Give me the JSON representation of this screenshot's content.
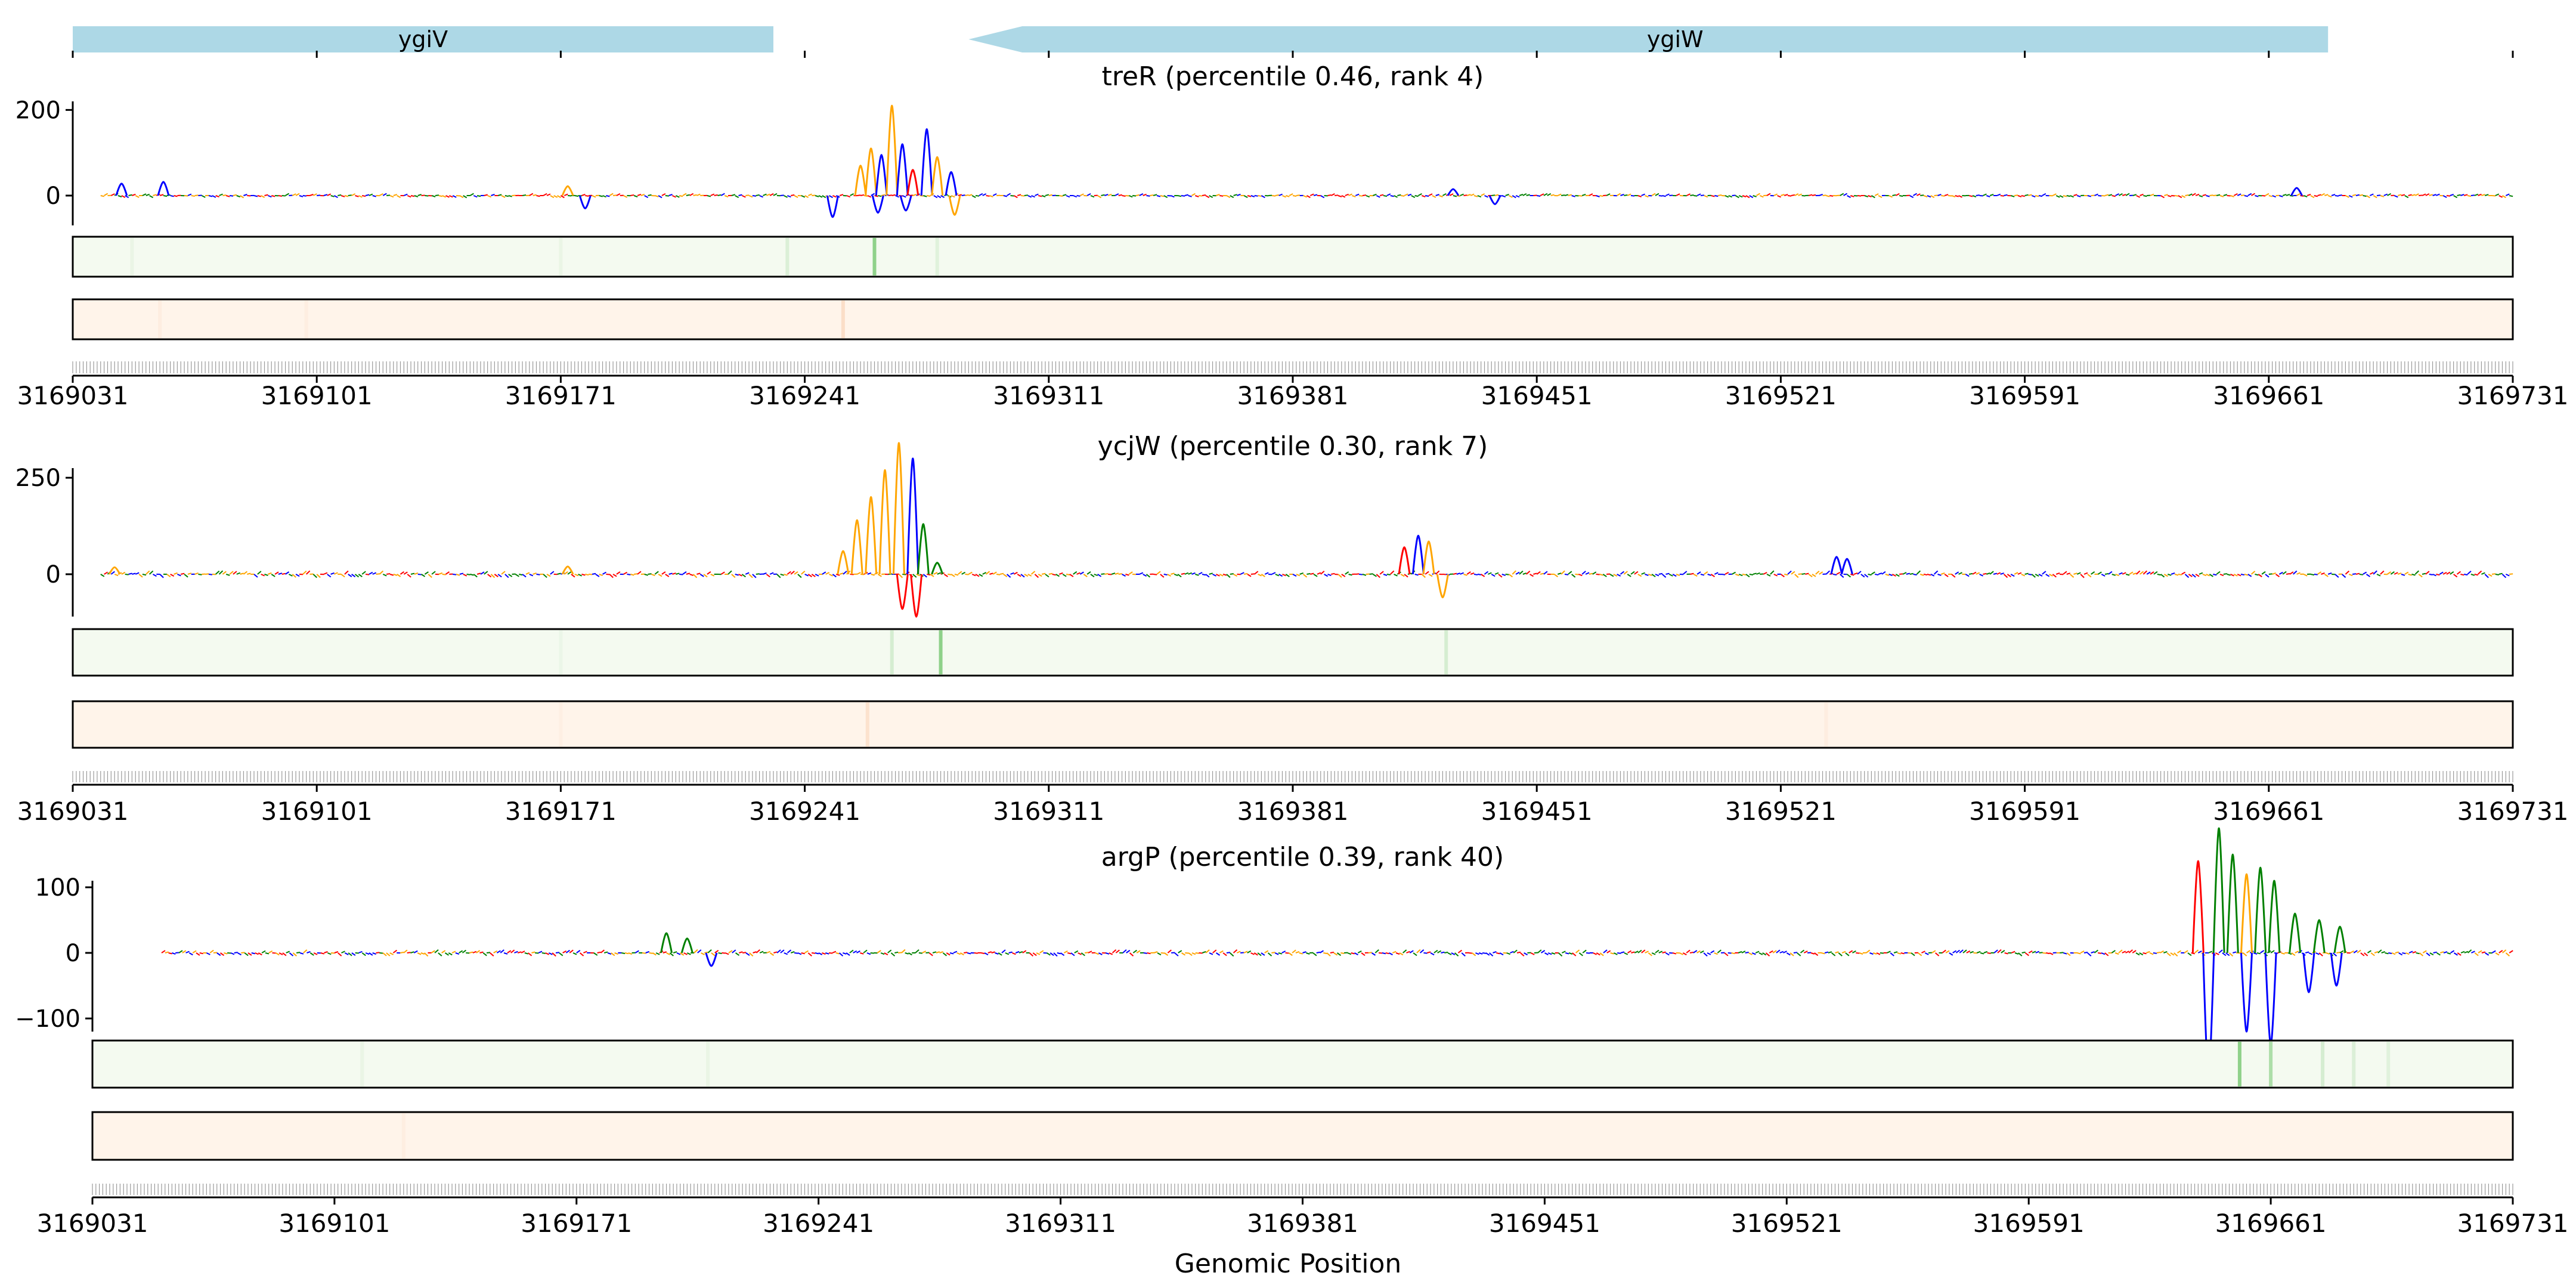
{
  "figure": {
    "xlabel": "Genomic Position",
    "colors": {
      "gene": "#add8e6",
      "base_A": "#008000",
      "base_C": "#0000ff",
      "base_G": "#ffa500",
      "base_T": "#ff0000",
      "heat_green_bg": "#f4faf0",
      "heat_green_peak": "#8fd18a",
      "heat_orange_bg": "#fff4ea",
      "heat_orange_peak": "#f7c8a5"
    }
  },
  "chart_data": {
    "type": "genome-track-figure",
    "x_range": [
      3169031,
      3169731
    ],
    "x_ticks": [
      3169031,
      3169101,
      3169171,
      3169241,
      3169311,
      3169381,
      3169451,
      3169521,
      3169591,
      3169661,
      3169731
    ],
    "x_tick_labels": [
      "3169031",
      "3169101",
      "3169171",
      "3169241",
      "3169311",
      "3169381",
      "3169451",
      "3169521",
      "3169591",
      "3169661",
      "3169731"
    ],
    "genes": [
      {
        "name": "ygiV",
        "start": 3169031,
        "end": 3169232,
        "strand": "+"
      },
      {
        "name": "ygiW",
        "start": 3169288,
        "end": 3169678,
        "strand": "-"
      }
    ],
    "panels": [
      {
        "title": "treR (percentile 0.46, rank 4)",
        "y_ticks": [
          0,
          200
        ],
        "y_tick_labels": [
          "0",
          "200"
        ],
        "ylim": [
          -80,
          230
        ],
        "xlim": [
          3169031,
          3169731
        ],
        "attribution_peaks": [
          {
            "x": 3169045,
            "value": 28,
            "base": "C"
          },
          {
            "x": 3169057,
            "value": 32,
            "base": "C"
          },
          {
            "x": 3169173,
            "value": 22,
            "base": "G"
          },
          {
            "x": 3169178,
            "value": -30,
            "base": "C"
          },
          {
            "x": 3169257,
            "value": 70,
            "base": "G"
          },
          {
            "x": 3169260,
            "value": 110,
            "base": "G"
          },
          {
            "x": 3169263,
            "value": 95,
            "base": "C"
          },
          {
            "x": 3169266,
            "value": 210,
            "base": "G"
          },
          {
            "x": 3169269,
            "value": 120,
            "base": "C"
          },
          {
            "x": 3169272,
            "value": 60,
            "base": "T"
          },
          {
            "x": 3169276,
            "value": 155,
            "base": "C"
          },
          {
            "x": 3169279,
            "value": 90,
            "base": "G"
          },
          {
            "x": 3169283,
            "value": 55,
            "base": "C"
          },
          {
            "x": 3169249,
            "value": -50,
            "base": "C"
          },
          {
            "x": 3169262,
            "value": -40,
            "base": "C"
          },
          {
            "x": 3169270,
            "value": -35,
            "base": "C"
          },
          {
            "x": 3169284,
            "value": -45,
            "base": "G"
          },
          {
            "x": 3169427,
            "value": 15,
            "base": "C"
          },
          {
            "x": 3169439,
            "value": -20,
            "base": "C"
          },
          {
            "x": 3169669,
            "value": 18,
            "base": "C"
          }
        ],
        "heat_green": [
          {
            "x": 3169261,
            "intensity": 1.0
          },
          {
            "x": 3169236,
            "intensity": 0.25
          },
          {
            "x": 3169279,
            "intensity": 0.2
          },
          {
            "x": 3169048,
            "intensity": 0.1
          },
          {
            "x": 3169171,
            "intensity": 0.1
          }
        ],
        "heat_orange": [
          {
            "x": 3169252,
            "intensity": 0.5
          },
          {
            "x": 3169056,
            "intensity": 0.15
          },
          {
            "x": 3169098,
            "intensity": 0.12
          }
        ]
      },
      {
        "title": "ycjW (percentile 0.30, rank 7)",
        "y_ticks": [
          0,
          250
        ],
        "y_tick_labels": [
          "0",
          "250"
        ],
        "ylim": [
          -120,
          360
        ],
        "xlim": [
          3169031,
          3169731
        ],
        "attribution_peaks": [
          {
            "x": 3169043,
            "value": 18,
            "base": "G"
          },
          {
            "x": 3169173,
            "value": 20,
            "base": "G"
          },
          {
            "x": 3169252,
            "value": 60,
            "base": "G"
          },
          {
            "x": 3169256,
            "value": 140,
            "base": "G"
          },
          {
            "x": 3169260,
            "value": 200,
            "base": "G"
          },
          {
            "x": 3169264,
            "value": 270,
            "base": "G"
          },
          {
            "x": 3169268,
            "value": 340,
            "base": "G"
          },
          {
            "x": 3169272,
            "value": 300,
            "base": "C"
          },
          {
            "x": 3169275,
            "value": 130,
            "base": "A"
          },
          {
            "x": 3169269,
            "value": -90,
            "base": "T"
          },
          {
            "x": 3169273,
            "value": -110,
            "base": "T"
          },
          {
            "x": 3169279,
            "value": 30,
            "base": "A"
          },
          {
            "x": 3169413,
            "value": 70,
            "base": "T"
          },
          {
            "x": 3169417,
            "value": 100,
            "base": "C"
          },
          {
            "x": 3169420,
            "value": 85,
            "base": "G"
          },
          {
            "x": 3169424,
            "value": -60,
            "base": "G"
          },
          {
            "x": 3169537,
            "value": 45,
            "base": "C"
          },
          {
            "x": 3169540,
            "value": 40,
            "base": "C"
          }
        ],
        "heat_green": [
          {
            "x": 3169280,
            "intensity": 1.0
          },
          {
            "x": 3169266,
            "intensity": 0.3
          },
          {
            "x": 3169425,
            "intensity": 0.3
          },
          {
            "x": 3169171,
            "intensity": 0.08
          }
        ],
        "heat_orange": [
          {
            "x": 3169259,
            "intensity": 0.4
          },
          {
            "x": 3169534,
            "intensity": 0.15
          },
          {
            "x": 3169171,
            "intensity": 0.1
          }
        ]
      },
      {
        "title": "argP (percentile 0.39, rank 40)",
        "y_ticks": [
          -100,
          0,
          100
        ],
        "y_tick_labels": [
          "−100",
          "0",
          "100"
        ],
        "ylim": [
          -190,
          200
        ],
        "xlim": [
          3169031,
          3169731
        ],
        "attribution_peaks": [
          {
            "x": 3169197,
            "value": 30,
            "base": "A"
          },
          {
            "x": 3169203,
            "value": 22,
            "base": "A"
          },
          {
            "x": 3169210,
            "value": -20,
            "base": "C"
          },
          {
            "x": 3169640,
            "value": 140,
            "base": "T"
          },
          {
            "x": 3169646,
            "value": 190,
            "base": "A"
          },
          {
            "x": 3169650,
            "value": 150,
            "base": "A"
          },
          {
            "x": 3169654,
            "value": 120,
            "base": "G"
          },
          {
            "x": 3169658,
            "value": 130,
            "base": "A"
          },
          {
            "x": 3169662,
            "value": 110,
            "base": "A"
          },
          {
            "x": 3169668,
            "value": 60,
            "base": "A"
          },
          {
            "x": 3169675,
            "value": 50,
            "base": "A"
          },
          {
            "x": 3169681,
            "value": 40,
            "base": "A"
          },
          {
            "x": 3169643,
            "value": -190,
            "base": "C"
          },
          {
            "x": 3169654,
            "value": -120,
            "base": "C"
          },
          {
            "x": 3169661,
            "value": -140,
            "base": "C"
          },
          {
            "x": 3169672,
            "value": -60,
            "base": "C"
          },
          {
            "x": 3169680,
            "value": -50,
            "base": "C"
          }
        ],
        "heat_green": [
          {
            "x": 3169652,
            "intensity": 1.0
          },
          {
            "x": 3169661,
            "intensity": 0.7
          },
          {
            "x": 3169676,
            "intensity": 0.3
          },
          {
            "x": 3169685,
            "intensity": 0.25
          },
          {
            "x": 3169695,
            "intensity": 0.2
          },
          {
            "x": 3169109,
            "intensity": 0.1
          },
          {
            "x": 3169209,
            "intensity": 0.1
          }
        ],
        "heat_orange": [
          {
            "x": 3169121,
            "intensity": 0.12
          }
        ]
      }
    ]
  }
}
